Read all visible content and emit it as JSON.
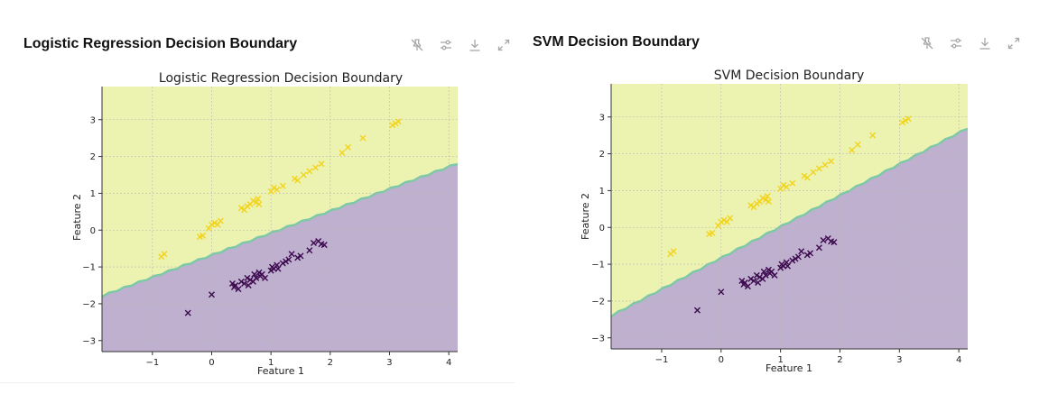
{
  "panels": [
    {
      "header_title": "Logistic Regression Decision Boundary",
      "toolbar": [
        {
          "icon": "pin-off-icon"
        },
        {
          "icon": "sliders-icon"
        },
        {
          "icon": "download-icon"
        },
        {
          "icon": "expand-icon"
        }
      ]
    },
    {
      "header_title": "SVM Decision Boundary",
      "toolbar": [
        {
          "icon": "pin-off-icon"
        },
        {
          "icon": "sliders-icon"
        },
        {
          "icon": "download-icon"
        },
        {
          "icon": "expand-icon"
        }
      ]
    }
  ],
  "colors": {
    "upper_region": "#ecf3b0",
    "lower_region": "#bfb0cf",
    "boundary": "#7ec8a8",
    "class_yellow": "#f2d41f",
    "class_purple": "#3d0a4f"
  },
  "chart_data": [
    {
      "type": "scatter",
      "title": "Logistic Regression Decision Boundary",
      "xlabel": "Feature 1",
      "ylabel": "Feature 2",
      "xlim": [
        -1.85,
        4.15
      ],
      "ylim": [
        -3.3,
        3.9
      ],
      "xticks": [
        -1,
        0,
        1,
        2,
        3,
        4
      ],
      "yticks": [
        -3,
        -2,
        -1,
        0,
        1,
        2,
        3
      ],
      "xtick_labels": [
        "−1",
        "0",
        "1",
        "2",
        "3",
        "4"
      ],
      "ytick_labels": [
        "−3",
        "−2",
        "−1",
        "0",
        "1",
        "2",
        "3"
      ],
      "grid": true,
      "boundary": {
        "slope": 0.6,
        "intercept": -0.7
      },
      "series": [
        {
          "marker": "x",
          "points": [
            [
              -0.85,
              -0.72
            ],
            [
              -0.8,
              -0.65
            ],
            [
              -0.2,
              -0.18
            ],
            [
              -0.15,
              -0.15
            ],
            [
              -0.05,
              0.05
            ],
            [
              0.0,
              0.15
            ],
            [
              0.05,
              0.2
            ],
            [
              0.1,
              0.15
            ],
            [
              0.15,
              0.25
            ],
            [
              0.5,
              0.6
            ],
            [
              0.55,
              0.55
            ],
            [
              0.6,
              0.65
            ],
            [
              0.65,
              0.7
            ],
            [
              0.7,
              0.8
            ],
            [
              0.75,
              0.75
            ],
            [
              0.8,
              0.7
            ],
            [
              0.78,
              0.85
            ],
            [
              1.0,
              1.05
            ],
            [
              1.05,
              1.15
            ],
            [
              1.1,
              1.1
            ],
            [
              1.2,
              1.2
            ],
            [
              1.4,
              1.4
            ],
            [
              1.45,
              1.35
            ],
            [
              1.55,
              1.5
            ],
            [
              1.65,
              1.6
            ],
            [
              1.75,
              1.7
            ],
            [
              1.85,
              1.8
            ],
            [
              2.2,
              2.1
            ],
            [
              2.3,
              2.25
            ],
            [
              2.55,
              2.5
            ],
            [
              3.05,
              2.85
            ],
            [
              3.1,
              2.9
            ],
            [
              3.15,
              2.95
            ]
          ]
        },
        {
          "marker": "x",
          "points": [
            [
              -0.4,
              -2.25
            ],
            [
              0.0,
              -1.75
            ],
            [
              0.35,
              -1.45
            ],
            [
              0.38,
              -1.55
            ],
            [
              0.4,
              -1.5
            ],
            [
              0.45,
              -1.6
            ],
            [
              0.5,
              -1.4
            ],
            [
              0.55,
              -1.45
            ],
            [
              0.6,
              -1.3
            ],
            [
              0.62,
              -1.5
            ],
            [
              0.65,
              -1.35
            ],
            [
              0.7,
              -1.4
            ],
            [
              0.72,
              -1.2
            ],
            [
              0.75,
              -1.3
            ],
            [
              0.8,
              -1.15
            ],
            [
              0.82,
              -1.25
            ],
            [
              0.85,
              -1.2
            ],
            [
              0.9,
              -1.3
            ],
            [
              1.0,
              -1.1
            ],
            [
              1.02,
              -1.0
            ],
            [
              1.05,
              -1.05
            ],
            [
              1.1,
              -0.95
            ],
            [
              1.12,
              -1.05
            ],
            [
              1.2,
              -0.9
            ],
            [
              1.25,
              -0.85
            ],
            [
              1.3,
              -0.8
            ],
            [
              1.35,
              -0.65
            ],
            [
              1.45,
              -0.75
            ],
            [
              1.5,
              -0.7
            ],
            [
              1.65,
              -0.55
            ],
            [
              1.72,
              -0.35
            ],
            [
              1.8,
              -0.3
            ],
            [
              1.85,
              -0.38
            ],
            [
              1.9,
              -0.4
            ]
          ]
        }
      ]
    },
    {
      "type": "scatter",
      "title": "SVM Decision Boundary",
      "xlabel": "Feature 1",
      "ylabel": "Feature 2",
      "xlim": [
        -1.85,
        4.15
      ],
      "ylim": [
        -3.3,
        3.9
      ],
      "xticks": [
        -1,
        0,
        1,
        2,
        3,
        4
      ],
      "yticks": [
        -3,
        -2,
        -1,
        0,
        1,
        2,
        3
      ],
      "xtick_labels": [
        "−1",
        "0",
        "1",
        "2",
        "3",
        "4"
      ],
      "ytick_labels": [
        "−3",
        "−2",
        "−1",
        "0",
        "1",
        "2",
        "3"
      ],
      "grid": true,
      "boundary": {
        "slope": 0.85,
        "intercept": -0.85
      },
      "series": [
        {
          "marker": "x",
          "points": [
            [
              -0.85,
              -0.72
            ],
            [
              -0.8,
              -0.65
            ],
            [
              -0.2,
              -0.18
            ],
            [
              -0.15,
              -0.15
            ],
            [
              -0.05,
              0.05
            ],
            [
              0.0,
              0.15
            ],
            [
              0.05,
              0.2
            ],
            [
              0.1,
              0.15
            ],
            [
              0.15,
              0.25
            ],
            [
              0.5,
              0.6
            ],
            [
              0.55,
              0.55
            ],
            [
              0.6,
              0.65
            ],
            [
              0.65,
              0.7
            ],
            [
              0.7,
              0.8
            ],
            [
              0.75,
              0.75
            ],
            [
              0.8,
              0.7
            ],
            [
              0.78,
              0.85
            ],
            [
              1.0,
              1.05
            ],
            [
              1.05,
              1.15
            ],
            [
              1.1,
              1.1
            ],
            [
              1.2,
              1.2
            ],
            [
              1.4,
              1.4
            ],
            [
              1.45,
              1.35
            ],
            [
              1.55,
              1.5
            ],
            [
              1.65,
              1.6
            ],
            [
              1.75,
              1.7
            ],
            [
              1.85,
              1.8
            ],
            [
              2.2,
              2.1
            ],
            [
              2.3,
              2.25
            ],
            [
              2.55,
              2.5
            ],
            [
              3.05,
              2.85
            ],
            [
              3.1,
              2.9
            ],
            [
              3.15,
              2.95
            ]
          ]
        },
        {
          "marker": "x",
          "points": [
            [
              -0.4,
              -2.25
            ],
            [
              0.0,
              -1.75
            ],
            [
              0.35,
              -1.45
            ],
            [
              0.38,
              -1.55
            ],
            [
              0.4,
              -1.5
            ],
            [
              0.45,
              -1.6
            ],
            [
              0.5,
              -1.4
            ],
            [
              0.55,
              -1.45
            ],
            [
              0.6,
              -1.3
            ],
            [
              0.62,
              -1.5
            ],
            [
              0.65,
              -1.35
            ],
            [
              0.7,
              -1.4
            ],
            [
              0.72,
              -1.2
            ],
            [
              0.75,
              -1.3
            ],
            [
              0.8,
              -1.15
            ],
            [
              0.82,
              -1.25
            ],
            [
              0.85,
              -1.2
            ],
            [
              0.9,
              -1.3
            ],
            [
              1.0,
              -1.1
            ],
            [
              1.02,
              -1.0
            ],
            [
              1.05,
              -1.05
            ],
            [
              1.1,
              -0.95
            ],
            [
              1.12,
              -1.05
            ],
            [
              1.2,
              -0.9
            ],
            [
              1.25,
              -0.85
            ],
            [
              1.3,
              -0.8
            ],
            [
              1.35,
              -0.65
            ],
            [
              1.45,
              -0.75
            ],
            [
              1.5,
              -0.7
            ],
            [
              1.65,
              -0.55
            ],
            [
              1.72,
              -0.35
            ],
            [
              1.8,
              -0.3
            ],
            [
              1.85,
              -0.38
            ],
            [
              1.9,
              -0.4
            ]
          ]
        }
      ]
    }
  ]
}
